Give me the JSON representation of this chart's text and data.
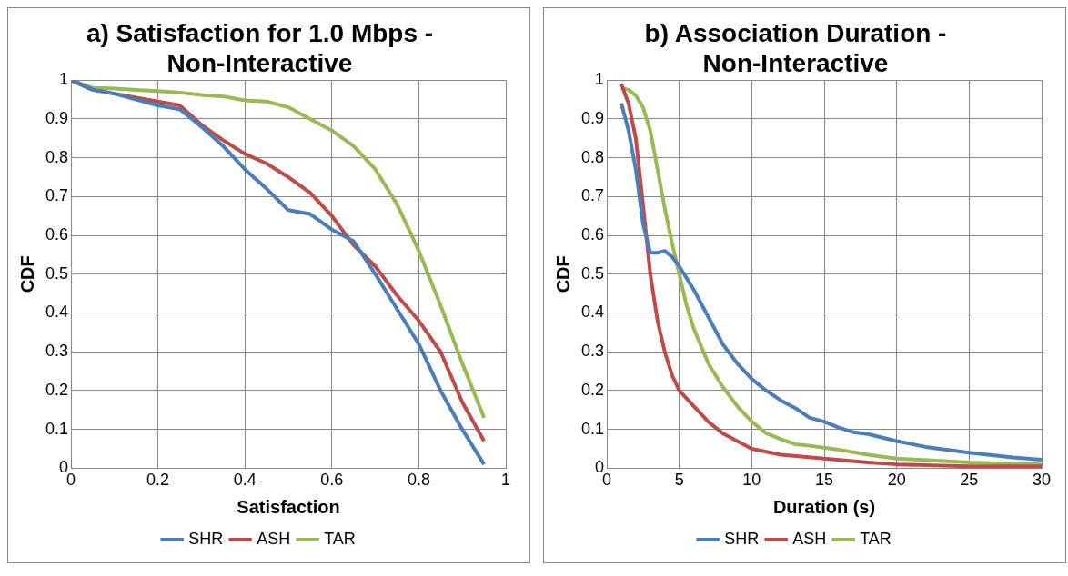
{
  "chart_data": [
    {
      "type": "line",
      "title": "a) Satisfaction for 1.0 Mbps -\nNon-Interactive",
      "xlabel": "Satisfaction",
      "ylabel": "CDF",
      "xlim": [
        0,
        1
      ],
      "xticks": [
        0,
        0.2,
        0.4,
        0.6,
        0.8,
        1
      ],
      "ylim": [
        0,
        1
      ],
      "yticks": [
        0,
        0.1,
        0.2,
        0.3,
        0.4,
        0.5,
        0.6,
        0.7,
        0.8,
        0.9,
        1
      ],
      "grid": true,
      "legend": "bottom",
      "marker": "none",
      "line_style": "solid",
      "x": [
        0,
        0.05,
        0.1,
        0.15,
        0.2,
        0.25,
        0.3,
        0.35,
        0.4,
        0.45,
        0.5,
        0.55,
        0.6,
        0.65,
        0.7,
        0.75,
        0.8,
        0.85,
        0.9,
        0.95
      ],
      "series": [
        {
          "name": "SHR",
          "color": "#4a7ebb",
          "values": [
            1,
            0.975,
            0.965,
            0.95,
            0.935,
            0.925,
            0.88,
            0.83,
            0.77,
            0.72,
            0.665,
            0.655,
            0.615,
            0.585,
            0.5,
            0.41,
            0.32,
            0.2,
            0.1,
            0.01
          ]
        },
        {
          "name": "ASH",
          "color": "#be4b48",
          "values": [
            1,
            0.975,
            0.965,
            0.955,
            0.945,
            0.935,
            0.885,
            0.845,
            0.81,
            0.785,
            0.75,
            0.71,
            0.65,
            0.575,
            0.52,
            0.445,
            0.38,
            0.3,
            0.17,
            0.07
          ]
        },
        {
          "name": "TAR",
          "color": "#98b954",
          "values": [
            1,
            0.98,
            0.978,
            0.975,
            0.972,
            0.968,
            0.962,
            0.958,
            0.948,
            0.945,
            0.93,
            0.9,
            0.87,
            0.83,
            0.77,
            0.68,
            0.56,
            0.42,
            0.27,
            0.13
          ]
        }
      ]
    },
    {
      "type": "line",
      "title": "b) Association Duration -\nNon-Interactive",
      "xlabel": "Duration (s)",
      "ylabel": "CDF",
      "xlim": [
        0,
        30
      ],
      "xticks": [
        0,
        5,
        10,
        15,
        20,
        25,
        30
      ],
      "ylim": [
        0,
        1
      ],
      "yticks": [
        0,
        0.1,
        0.2,
        0.3,
        0.4,
        0.5,
        0.6,
        0.7,
        0.8,
        0.9,
        1
      ],
      "grid": true,
      "legend": "bottom",
      "marker": "none",
      "line_style": "solid",
      "series": [
        {
          "name": "SHR",
          "color": "#4a7ebb",
          "x": [
            1,
            1.5,
            2,
            2.5,
            3,
            3.5,
            4,
            4.5,
            5,
            6,
            7,
            8,
            9,
            10,
            11,
            12,
            13,
            14,
            15,
            16,
            17,
            18,
            20,
            22,
            25,
            28,
            30
          ],
          "values": [
            0.94,
            0.87,
            0.77,
            0.63,
            0.555,
            0.555,
            0.56,
            0.545,
            0.52,
            0.46,
            0.39,
            0.32,
            0.27,
            0.23,
            0.2,
            0.175,
            0.155,
            0.13,
            0.12,
            0.105,
            0.093,
            0.088,
            0.07,
            0.055,
            0.04,
            0.028,
            0.022
          ]
        },
        {
          "name": "ASH",
          "color": "#be4b48",
          "x": [
            1,
            1.5,
            2,
            2.5,
            3,
            3.5,
            4,
            4.5,
            5,
            6,
            7,
            8,
            9,
            10,
            12,
            15,
            18,
            20,
            25,
            30
          ],
          "values": [
            0.99,
            0.94,
            0.85,
            0.68,
            0.5,
            0.38,
            0.3,
            0.24,
            0.2,
            0.16,
            0.12,
            0.09,
            0.07,
            0.05,
            0.035,
            0.025,
            0.015,
            0.01,
            0.005,
            0.005
          ]
        },
        {
          "name": "TAR",
          "color": "#98b954",
          "x": [
            1,
            1.5,
            2,
            2.5,
            3,
            3.5,
            4,
            4.5,
            5,
            5.5,
            6,
            7,
            8,
            9,
            10,
            11,
            12,
            13,
            14,
            16,
            18,
            20,
            25,
            30
          ],
          "values": [
            0.98,
            0.975,
            0.96,
            0.93,
            0.87,
            0.77,
            0.67,
            0.58,
            0.5,
            0.42,
            0.36,
            0.27,
            0.21,
            0.16,
            0.12,
            0.09,
            0.075,
            0.062,
            0.058,
            0.048,
            0.035,
            0.025,
            0.015,
            0.01
          ]
        }
      ]
    }
  ]
}
